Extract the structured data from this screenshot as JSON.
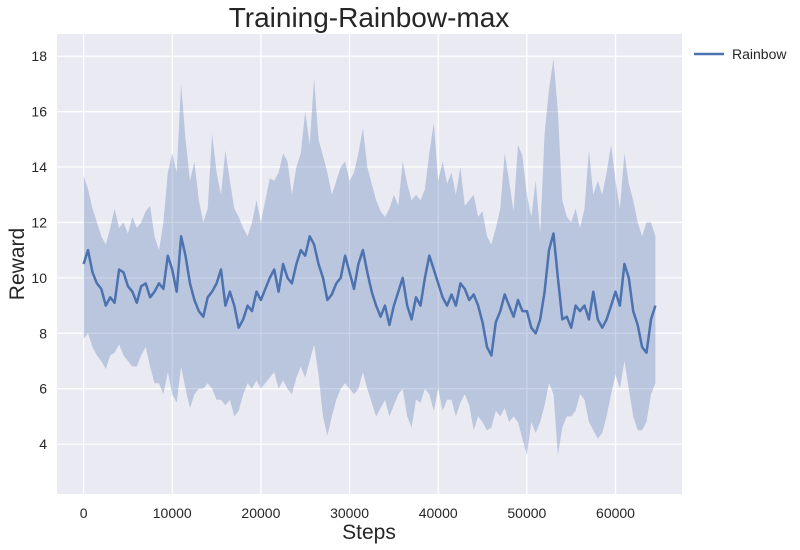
{
  "chart_data": {
    "type": "line",
    "title": "Training-Rainbow-max",
    "xlabel": "Steps",
    "ylabel": "Reward",
    "xlim": [
      -3000,
      67500
    ],
    "ylim": [
      2.2,
      18.8
    ],
    "xticks": [
      0,
      10000,
      20000,
      30000,
      40000,
      50000,
      60000
    ],
    "yticks": [
      4,
      6,
      8,
      10,
      12,
      14,
      16,
      18
    ],
    "grid": true,
    "legend_position": "outside-top-right",
    "series": [
      {
        "name": "Rainbow",
        "color": "#4c72b0",
        "band_color": "#4c72b0",
        "points": [
          [
            0,
            10.5,
            7.8,
            13.7
          ],
          [
            500,
            11.0,
            8.0,
            13.2
          ],
          [
            1000,
            10.2,
            7.5,
            12.5
          ],
          [
            1500,
            9.8,
            7.2,
            12.0
          ],
          [
            2000,
            9.6,
            7.0,
            11.5
          ],
          [
            2500,
            9.0,
            6.7,
            11.2
          ],
          [
            3000,
            9.3,
            7.2,
            11.8
          ],
          [
            3500,
            9.1,
            7.3,
            12.5
          ],
          [
            4000,
            10.3,
            7.6,
            11.8
          ],
          [
            4500,
            10.2,
            7.2,
            12.0
          ],
          [
            5000,
            9.7,
            7.0,
            11.6
          ],
          [
            5500,
            9.5,
            6.8,
            12.2
          ],
          [
            6000,
            9.1,
            6.8,
            11.8
          ],
          [
            6500,
            9.7,
            7.2,
            12.0
          ],
          [
            7000,
            9.8,
            7.5,
            12.4
          ],
          [
            7500,
            9.3,
            6.8,
            12.6
          ],
          [
            8000,
            9.5,
            6.2,
            11.5
          ],
          [
            8500,
            9.8,
            6.2,
            11.0
          ],
          [
            9000,
            9.6,
            5.8,
            12.0
          ],
          [
            9500,
            10.8,
            6.6,
            13.8
          ],
          [
            10000,
            10.3,
            5.8,
            14.5
          ],
          [
            10500,
            9.5,
            5.5,
            13.8
          ],
          [
            11000,
            11.5,
            6.8,
            17.0
          ],
          [
            11500,
            10.8,
            6.0,
            15.0
          ],
          [
            12000,
            9.8,
            5.3,
            13.5
          ],
          [
            12500,
            9.2,
            5.8,
            14.2
          ],
          [
            13000,
            8.8,
            6.0,
            12.8
          ],
          [
            13500,
            8.6,
            6.0,
            12.0
          ],
          [
            14000,
            9.3,
            6.2,
            12.5
          ],
          [
            14500,
            9.5,
            6.0,
            15.2
          ],
          [
            15000,
            9.8,
            5.6,
            13.8
          ],
          [
            15500,
            10.3,
            5.6,
            13.0
          ],
          [
            16000,
            9.0,
            5.4,
            14.6
          ],
          [
            16500,
            9.5,
            5.6,
            13.5
          ],
          [
            17000,
            9.0,
            5.0,
            12.5
          ],
          [
            17500,
            8.2,
            5.2,
            12.2
          ],
          [
            18000,
            8.5,
            5.8,
            11.8
          ],
          [
            18500,
            9.0,
            6.2,
            11.5
          ],
          [
            19000,
            8.8,
            6.0,
            12.0
          ],
          [
            19500,
            9.5,
            6.3,
            12.8
          ],
          [
            20000,
            9.2,
            6.0,
            12.0
          ],
          [
            20500,
            9.6,
            6.2,
            12.8
          ],
          [
            21000,
            10.0,
            6.4,
            13.6
          ],
          [
            21500,
            10.3,
            6.6,
            13.5
          ],
          [
            22000,
            9.5,
            6.0,
            13.8
          ],
          [
            22500,
            10.5,
            6.3,
            14.5
          ],
          [
            23000,
            10.0,
            6.0,
            14.2
          ],
          [
            23500,
            9.8,
            5.8,
            13.0
          ],
          [
            24000,
            10.5,
            6.4,
            14.0
          ],
          [
            24500,
            11.0,
            6.8,
            14.5
          ],
          [
            25000,
            10.8,
            6.4,
            16.0
          ],
          [
            25500,
            11.5,
            7.0,
            14.8
          ],
          [
            26000,
            11.2,
            7.6,
            17.2
          ],
          [
            26500,
            10.5,
            6.5,
            15.0
          ],
          [
            27000,
            10.0,
            5.0,
            14.4
          ],
          [
            27500,
            9.2,
            4.3,
            13.8
          ],
          [
            28000,
            9.4,
            5.0,
            13.0
          ],
          [
            28500,
            9.8,
            5.6,
            13.5
          ],
          [
            29000,
            10.0,
            6.0,
            14.0
          ],
          [
            29500,
            10.8,
            6.2,
            14.2
          ],
          [
            30000,
            10.2,
            6.0,
            13.5
          ],
          [
            30500,
            9.6,
            5.8,
            13.8
          ],
          [
            31000,
            10.5,
            6.0,
            14.5
          ],
          [
            31500,
            11.0,
            6.6,
            15.4
          ],
          [
            32000,
            10.2,
            6.0,
            14.0
          ],
          [
            32500,
            9.5,
            5.5,
            13.4
          ],
          [
            33000,
            9.0,
            5.0,
            12.8
          ],
          [
            33500,
            8.6,
            5.3,
            12.4
          ],
          [
            34000,
            9.0,
            5.6,
            12.2
          ],
          [
            34500,
            8.3,
            5.0,
            12.5
          ],
          [
            35000,
            9.0,
            5.4,
            13.0
          ],
          [
            35500,
            9.5,
            5.8,
            12.6
          ],
          [
            36000,
            10.0,
            6.0,
            14.2
          ],
          [
            36500,
            9.0,
            5.0,
            13.4
          ],
          [
            37000,
            8.5,
            4.6,
            12.8
          ],
          [
            37500,
            9.3,
            5.6,
            13.0
          ],
          [
            38000,
            9.0,
            5.5,
            12.8
          ],
          [
            38500,
            10.0,
            6.0,
            13.2
          ],
          [
            39000,
            10.8,
            5.8,
            14.5
          ],
          [
            39500,
            10.3,
            5.2,
            15.6
          ],
          [
            40000,
            9.8,
            6.0,
            13.5
          ],
          [
            40500,
            9.3,
            5.2,
            14.2
          ],
          [
            41000,
            9.0,
            5.6,
            13.4
          ],
          [
            41500,
            9.4,
            5.6,
            13.8
          ],
          [
            42000,
            9.0,
            5.0,
            13.0
          ],
          [
            42500,
            9.8,
            5.5,
            14.0
          ],
          [
            43000,
            9.6,
            5.8,
            12.6
          ],
          [
            43500,
            9.2,
            5.4,
            12.8
          ],
          [
            44000,
            9.4,
            4.5,
            13.0
          ],
          [
            44500,
            9.0,
            5.0,
            12.2
          ],
          [
            45000,
            8.4,
            4.8,
            12.4
          ],
          [
            45500,
            7.5,
            4.5,
            11.5
          ],
          [
            46000,
            7.2,
            4.6,
            11.2
          ],
          [
            46500,
            8.4,
            5.2,
            11.8
          ],
          [
            47000,
            8.8,
            5.0,
            12.5
          ],
          [
            47500,
            9.4,
            5.3,
            14.5
          ],
          [
            48000,
            9.0,
            4.8,
            13.5
          ],
          [
            48500,
            8.6,
            5.0,
            12.4
          ],
          [
            49000,
            9.2,
            4.8,
            14.8
          ],
          [
            49500,
            8.8,
            4.2,
            14.4
          ],
          [
            50000,
            8.8,
            3.6,
            13.0
          ],
          [
            50500,
            8.2,
            4.8,
            12.2
          ],
          [
            51000,
            8.0,
            4.4,
            13.5
          ],
          [
            51500,
            8.5,
            4.8,
            11.6
          ],
          [
            52000,
            9.5,
            5.4,
            15.2
          ],
          [
            52500,
            11.0,
            6.2,
            16.8
          ],
          [
            53000,
            11.6,
            5.8,
            17.9
          ],
          [
            53500,
            10.0,
            3.6,
            16.0
          ],
          [
            54000,
            8.5,
            4.6,
            12.8
          ],
          [
            54500,
            8.6,
            5.0,
            12.2
          ],
          [
            55000,
            8.2,
            5.0,
            12.0
          ],
          [
            55500,
            9.0,
            5.2,
            12.5
          ],
          [
            56000,
            8.8,
            5.8,
            11.8
          ],
          [
            56500,
            9.0,
            5.6,
            12.5
          ],
          [
            57000,
            8.5,
            4.8,
            14.6
          ],
          [
            57500,
            9.5,
            4.5,
            13.0
          ],
          [
            58000,
            8.5,
            4.2,
            13.5
          ],
          [
            58500,
            8.2,
            4.4,
            13.0
          ],
          [
            59000,
            8.5,
            5.0,
            13.8
          ],
          [
            59500,
            9.0,
            5.8,
            14.8
          ],
          [
            60000,
            9.5,
            6.5,
            13.5
          ],
          [
            60500,
            9.0,
            6.0,
            12.5
          ],
          [
            61000,
            10.5,
            7.0,
            14.5
          ],
          [
            61500,
            10.0,
            6.0,
            13.4
          ],
          [
            62000,
            8.8,
            5.0,
            12.8
          ],
          [
            62500,
            8.3,
            4.5,
            12.0
          ],
          [
            63000,
            7.5,
            4.5,
            11.5
          ],
          [
            63500,
            7.3,
            4.8,
            12.0
          ],
          [
            64000,
            8.5,
            5.8,
            12.0
          ],
          [
            64500,
            9.0,
            6.2,
            11.5
          ]
        ]
      }
    ]
  }
}
